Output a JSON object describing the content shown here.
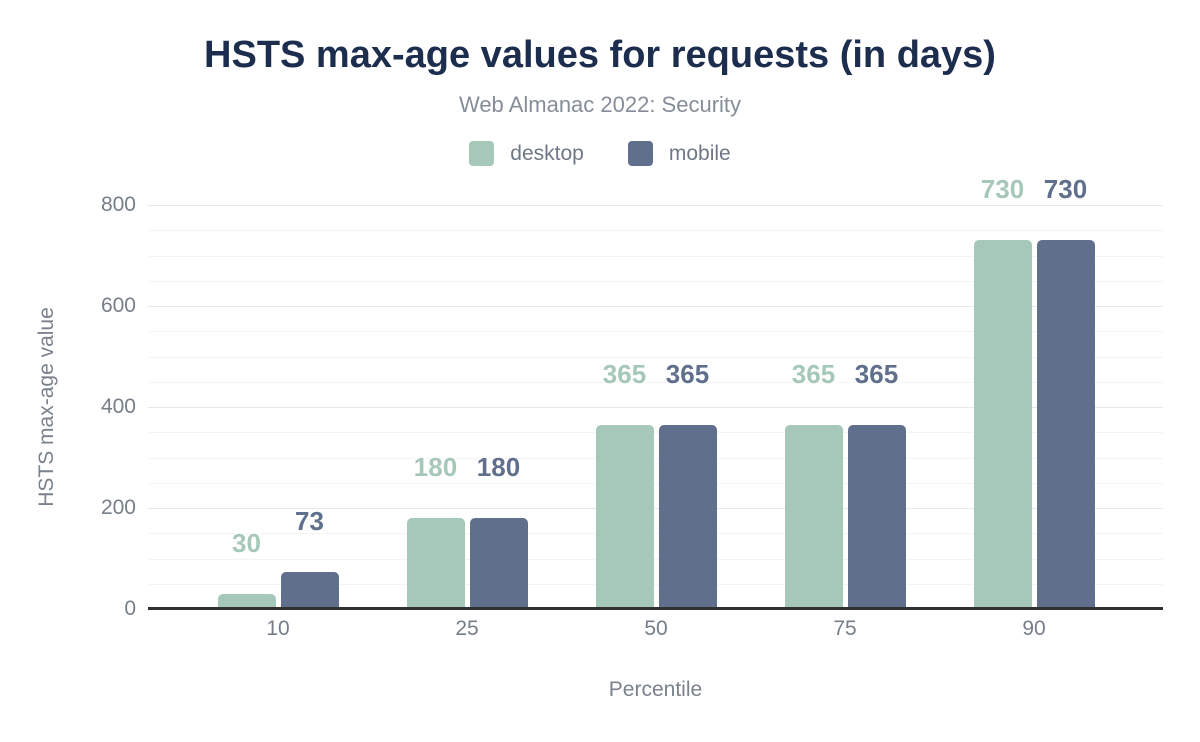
{
  "chart": {
    "title": "HSTS max-age values for requests (in days)",
    "subtitle": "Web Almanac 2022: Security"
  },
  "chart_data": {
    "type": "bar",
    "title": "HSTS max-age values for requests (in days)",
    "subtitle": "Web Almanac 2022: Security",
    "xlabel": "Percentile",
    "ylabel": "HSTS max-age value",
    "categories": [
      "10",
      "25",
      "50",
      "75",
      "90"
    ],
    "series": [
      {
        "name": "desktop",
        "color": "#a5c8b8",
        "values": [
          30,
          180,
          365,
          365,
          730
        ]
      },
      {
        "name": "mobile",
        "color": "#5f6f8c",
        "values": [
          73,
          180,
          365,
          365,
          730
        ]
      }
    ],
    "ylim": [
      0,
      800
    ],
    "y_major_ticks": [
      0,
      200,
      400,
      600,
      800
    ],
    "y_minor_step": 50,
    "grid": "horizontal-only",
    "legend_position": "top",
    "value_labels": true
  },
  "colors": {
    "title": "#1c2d4e",
    "subtitle": "#858d98",
    "axis_text": "#767e8a",
    "legend_text": "#6e7887",
    "grid_major": "#e8e8e8",
    "grid_minor": "#f4f4f4",
    "axis_line": "#303030",
    "background": "#ffffff"
  }
}
